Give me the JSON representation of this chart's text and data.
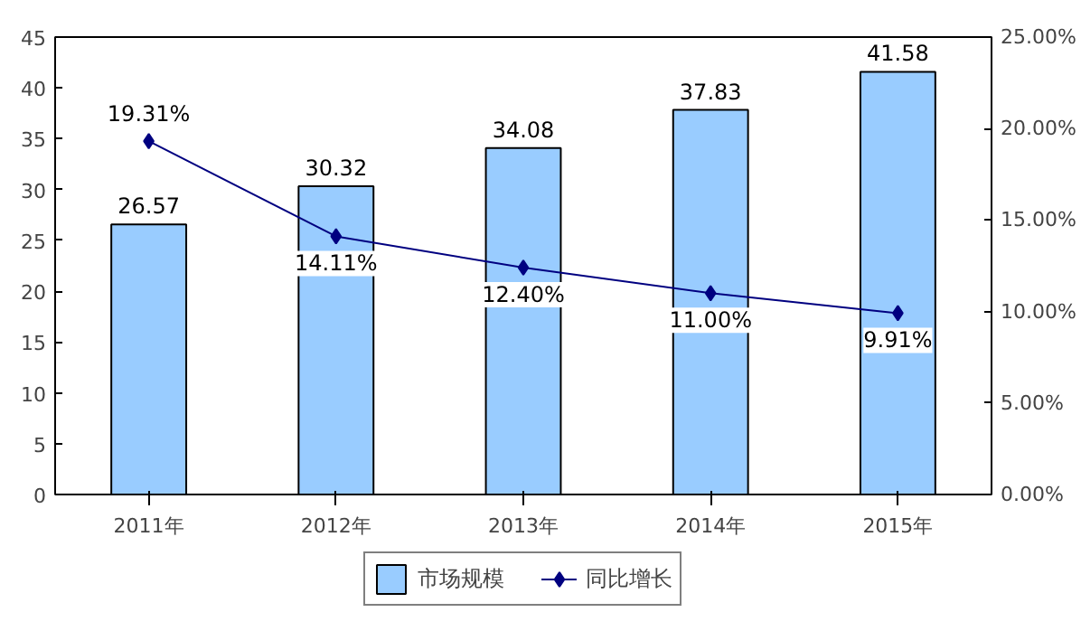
{
  "chart_data": {
    "type": "bar",
    "categories": [
      "2011年",
      "2012年",
      "2013年",
      "2014年",
      "2015年"
    ],
    "series": [
      {
        "name": "市场规模",
        "color": "#99ccff",
        "values": [
          26.57,
          30.32,
          34.08,
          37.83,
          41.58
        ],
        "value_labels": [
          "26.57",
          "30.32",
          "34.08",
          "37.83",
          "41.58"
        ]
      },
      {
        "name": "同比增长",
        "type": "line",
        "axis": "y2",
        "color": "#000080",
        "values": [
          19.31,
          14.11,
          12.4,
          11.0,
          9.91
        ],
        "value_labels": [
          "19.31%",
          "14.11%",
          "12.40%",
          "11.00%",
          "9.91%"
        ]
      }
    ],
    "ylim": [
      0,
      45
    ],
    "yticks": [
      0,
      5,
      10,
      15,
      20,
      25,
      30,
      35,
      40,
      45
    ],
    "y2lim": [
      0,
      25
    ],
    "y2ticks": [
      {
        "value": 0,
        "label": "0.00%"
      },
      {
        "value": 5,
        "label": "5.00%"
      },
      {
        "value": 10,
        "label": "10.00%"
      },
      {
        "value": 15,
        "label": "15.00%"
      },
      {
        "value": 20,
        "label": "20.00%"
      },
      {
        "value": 25,
        "label": "25.00%"
      }
    ],
    "marker": "diamond",
    "legend": "bottom",
    "grid": false
  }
}
